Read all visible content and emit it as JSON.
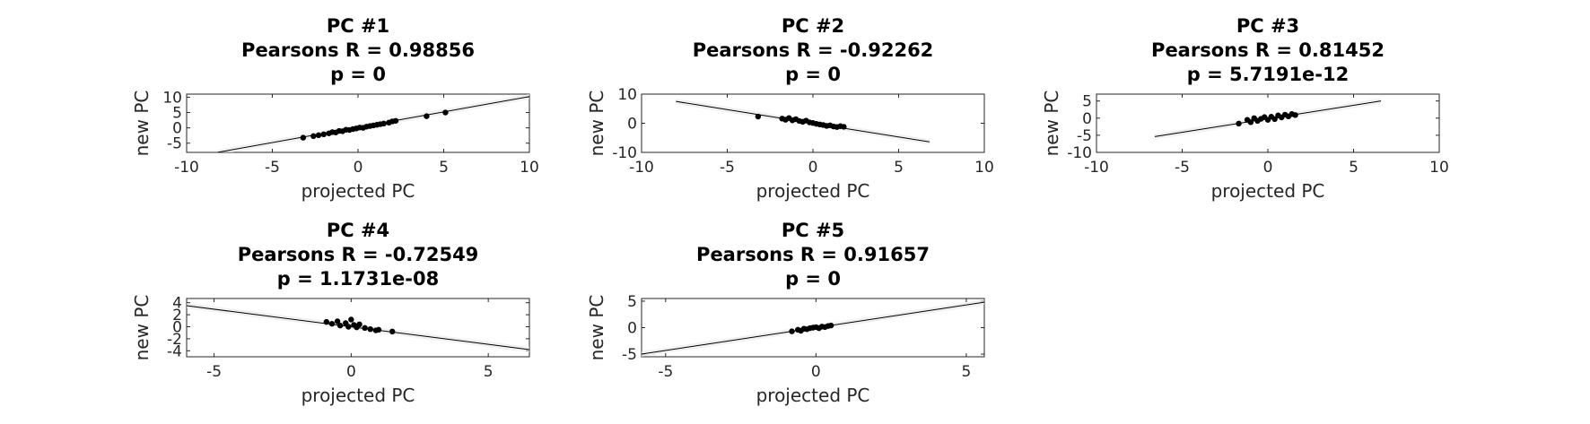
{
  "chart_data": [
    {
      "type": "scatter",
      "title": [
        "PC #1",
        "Pearsons R = 0.98856",
        "p = 0"
      ],
      "xlabel": "projected PC",
      "ylabel": "new PC",
      "xlim": [
        -10,
        10
      ],
      "ylim": [
        -8,
        11
      ],
      "xticks": [
        -10,
        -5,
        0,
        5,
        10
      ],
      "yticks": [
        -5,
        0,
        5,
        10
      ],
      "fit_line": {
        "x0": -8.2,
        "y0": -8.0,
        "x1": 10,
        "y1": 10.2
      },
      "points": [
        [
          -3.2,
          -3.2
        ],
        [
          -2.6,
          -2.7
        ],
        [
          -2.3,
          -2.4
        ],
        [
          -2.0,
          -2.1
        ],
        [
          -1.7,
          -1.8
        ],
        [
          -1.5,
          -1.4
        ],
        [
          -1.3,
          -1.5
        ],
        [
          -1.1,
          -1.0
        ],
        [
          -0.9,
          -1.1
        ],
        [
          -0.7,
          -0.6
        ],
        [
          -0.5,
          -0.7
        ],
        [
          -0.3,
          -0.4
        ],
        [
          -0.1,
          -0.2
        ],
        [
          0.1,
          0.1
        ],
        [
          0.3,
          0.0
        ],
        [
          0.5,
          0.4
        ],
        [
          0.7,
          0.6
        ],
        [
          0.9,
          0.8
        ],
        [
          1.1,
          1.0
        ],
        [
          1.3,
          1.2
        ],
        [
          1.5,
          1.4
        ],
        [
          1.8,
          1.7
        ],
        [
          2.0,
          2.1
        ],
        [
          2.2,
          2.3
        ],
        [
          4.0,
          3.8
        ],
        [
          5.1,
          5.0
        ]
      ]
    },
    {
      "type": "scatter",
      "title": [
        "PC #2",
        "Pearsons R = -0.92262",
        "p = 0"
      ],
      "xlabel": "projected PC",
      "ylabel": "new PC",
      "xlim": [
        -10,
        10
      ],
      "ylim": [
        -10,
        10
      ],
      "xticks": [
        -10,
        -5,
        0,
        5,
        10
      ],
      "yticks": [
        -10,
        0,
        10
      ],
      "fit_line": {
        "x0": -8.0,
        "y0": 7.5,
        "x1": 6.8,
        "y1": -6.4
      },
      "points": [
        [
          -3.2,
          2.3
        ],
        [
          -1.8,
          1.6
        ],
        [
          -1.6,
          1.2
        ],
        [
          -1.4,
          1.8
        ],
        [
          -1.2,
          1.0
        ],
        [
          -1.0,
          1.4
        ],
        [
          -0.8,
          0.8
        ],
        [
          -0.6,
          0.5
        ],
        [
          -0.4,
          0.9
        ],
        [
          -0.2,
          0.3
        ],
        [
          0.0,
          0.1
        ],
        [
          0.2,
          -0.2
        ],
        [
          0.4,
          -0.4
        ],
        [
          0.6,
          -0.6
        ],
        [
          0.8,
          -0.9
        ],
        [
          1.0,
          -0.7
        ],
        [
          1.2,
          -1.1
        ],
        [
          1.4,
          -1.3
        ],
        [
          1.6,
          -1.0
        ],
        [
          1.8,
          -1.2
        ]
      ]
    },
    {
      "type": "scatter",
      "title": [
        "PC #3",
        "Pearsons R = 0.81452",
        "p = 5.7191e-12"
      ],
      "xlabel": "projected PC",
      "ylabel": "new PC",
      "xlim": [
        -10,
        10
      ],
      "ylim": [
        -10,
        7
      ],
      "xticks": [
        -10,
        -5,
        0,
        5,
        10
      ],
      "yticks": [
        -10,
        -5,
        0,
        5
      ],
      "fit_line": {
        "x0": -6.6,
        "y0": -5.4,
        "x1": 6.6,
        "y1": 5.0
      },
      "points": [
        [
          -1.7,
          -1.6
        ],
        [
          -1.2,
          -0.5
        ],
        [
          -1.0,
          -1.2
        ],
        [
          -0.8,
          0.0
        ],
        [
          -0.6,
          -0.8
        ],
        [
          -0.4,
          -0.2
        ],
        [
          -0.2,
          0.3
        ],
        [
          0.0,
          -0.5
        ],
        [
          0.2,
          0.4
        ],
        [
          0.4,
          -0.3
        ],
        [
          0.6,
          0.8
        ],
        [
          0.8,
          0.2
        ],
        [
          1.0,
          1.0
        ],
        [
          1.2,
          0.5
        ],
        [
          1.4,
          1.2
        ],
        [
          1.6,
          0.9
        ]
      ]
    },
    {
      "type": "scatter",
      "title": [
        "PC #4",
        "Pearsons R = -0.72549",
        "p = 1.1731e-08"
      ],
      "xlabel": "projected PC",
      "ylabel": "new PC",
      "xlim": [
        -6,
        6.5
      ],
      "ylim": [
        -5,
        4.7
      ],
      "xticks": [
        -5,
        0,
        5
      ],
      "yticks": [
        -4,
        -2,
        0,
        2,
        4
      ],
      "fit_line": {
        "x0": -6.0,
        "y0": 3.5,
        "x1": 6.5,
        "y1": -3.8
      },
      "points": [
        [
          -0.9,
          0.8
        ],
        [
          -0.7,
          0.5
        ],
        [
          -0.5,
          0.9
        ],
        [
          -0.4,
          0.2
        ],
        [
          -0.2,
          0.6
        ],
        [
          -0.1,
          0.0
        ],
        [
          0.0,
          1.2
        ],
        [
          0.1,
          0.3
        ],
        [
          0.2,
          -0.1
        ],
        [
          0.3,
          0.4
        ],
        [
          0.5,
          -0.2
        ],
        [
          0.7,
          -0.4
        ],
        [
          0.9,
          -0.6
        ],
        [
          1.0,
          -0.5
        ],
        [
          1.5,
          -0.8
        ]
      ]
    },
    {
      "type": "scatter",
      "title": [
        "PC #5",
        "Pearsons R = 0.91657",
        "p = 0"
      ],
      "xlabel": "projected PC",
      "ylabel": "new PC",
      "xlim": [
        -5.8,
        5.6
      ],
      "ylim": [
        -5.5,
        5.5
      ],
      "xticks": [
        -5,
        0,
        5
      ],
      "yticks": [
        -5,
        0,
        5
      ],
      "fit_line": {
        "x0": -5.8,
        "y0": -5.0,
        "x1": 5.6,
        "y1": 4.8
      },
      "points": [
        [
          -0.8,
          -0.7
        ],
        [
          -0.6,
          -0.4
        ],
        [
          -0.5,
          -0.6
        ],
        [
          -0.4,
          -0.2
        ],
        [
          -0.3,
          -0.3
        ],
        [
          -0.2,
          -0.1
        ],
        [
          -0.1,
          0.0
        ],
        [
          0.0,
          0.1
        ],
        [
          0.1,
          -0.1
        ],
        [
          0.2,
          0.2
        ],
        [
          0.3,
          0.1
        ],
        [
          0.4,
          0.3
        ],
        [
          0.5,
          0.4
        ]
      ]
    }
  ]
}
